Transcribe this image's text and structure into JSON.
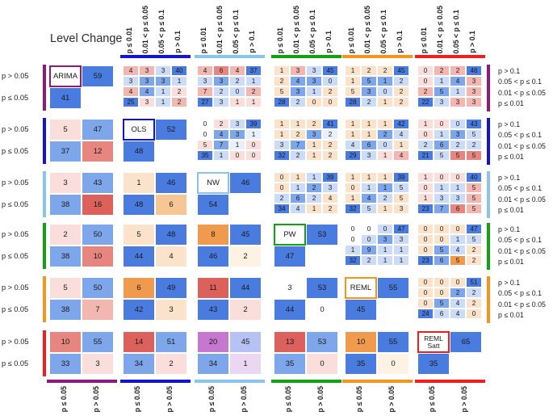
{
  "chart_data": {
    "type": "heatmap",
    "title": "Level Change",
    "top_axis_labels": [
      "p ≤ 0.01",
      "0.01 < p ≤ 0.05",
      "0.05 < p ≤ 0.1",
      "p > 0.1"
    ],
    "right_axis_labels": [
      "p > 0.1",
      "0.05 < p ≤ 0.1",
      "0.01 < p ≤ 0.05",
      "p ≤ 0.01"
    ],
    "left_axis_labels": [
      "p > 0.05",
      "p ≤ 0.05"
    ],
    "bottom_axis_labels": [
      "p ≤ 0.05",
      "p > 0.05"
    ],
    "palette": {
      "B": "#4a7ce0",
      "b": "#7ea6ea",
      "lb": "#ccdbf6",
      "vb": "#e9effb",
      "w": "#ffffff",
      "lp": "#f9dedb",
      "p": "#f3b7b1",
      "r": "#e78680",
      "R": "#dc605c",
      "pe": "#fae3ca",
      "o": "#f09a4e",
      "lo": "#f6c795",
      "cr": "#fdf2e3",
      "u": "#c678ce",
      "bu": "#b6c2f3",
      "lu": "#ebd7f1"
    },
    "methods": [
      {
        "name": "ARIMA",
        "color": "#8e1a7c",
        "p_gt_05": 59,
        "p_le_05": 41,
        "two_line": false
      },
      {
        "name": "OLS",
        "color": "#1414cd",
        "p_gt_05": 52,
        "p_le_05": 48,
        "two_line": false
      },
      {
        "name": "NW",
        "color": "#8ac4ea",
        "p_gt_05": 46,
        "p_le_05": 54,
        "two_line": false
      },
      {
        "name": "PW",
        "color": "#13a013",
        "p_gt_05": 53,
        "p_le_05": 47,
        "two_line": false
      },
      {
        "name": "REML",
        "color": "#f7941e",
        "p_gt_05": 55,
        "p_le_05": 45,
        "two_line": false
      },
      {
        "name": "REML Satt",
        "color": "#f21d1d",
        "p_gt_05": 65,
        "p_le_05": 35,
        "two_line": true
      }
    ],
    "upper_blocks": [
      {
        "row": 1,
        "col": 2,
        "values": [
          [
            4,
            3,
            3,
            40
          ],
          [
            3,
            3,
            3,
            1
          ],
          [
            4,
            4,
            1,
            2
          ],
          [
            25,
            3,
            1,
            2
          ]
        ],
        "colors": [
          [
            "p",
            "p",
            "lb",
            "B"
          ],
          [
            "lb",
            "b",
            "b",
            "lb"
          ],
          [
            "p",
            "b",
            "lb",
            "lp"
          ],
          [
            "B",
            "lp",
            "lb",
            "p"
          ]
        ]
      },
      {
        "row": 1,
        "col": 3,
        "values": [
          [
            4,
            6,
            4,
            37
          ],
          [
            3,
            3,
            2,
            1
          ],
          [
            7,
            2,
            0,
            2
          ],
          [
            27,
            3,
            1,
            1
          ]
        ],
        "colors": [
          [
            "p",
            "r",
            "p",
            "B"
          ],
          [
            "lb",
            "b",
            "lb",
            "lb"
          ],
          [
            "p",
            "lb",
            "lb",
            "p"
          ],
          [
            "B",
            "lb",
            "lp",
            "lp"
          ]
        ]
      },
      {
        "row": 1,
        "col": 4,
        "values": [
          [
            1,
            3,
            3,
            45
          ],
          [
            2,
            4,
            3,
            0
          ],
          [
            5,
            3,
            1,
            2
          ],
          [
            28,
            2,
            0,
            0
          ]
        ],
        "colors": [
          [
            "pe",
            "p",
            "lb",
            "B"
          ],
          [
            "pe",
            "b",
            "b",
            "lb"
          ],
          [
            "pe",
            "b",
            "lb",
            "pe"
          ],
          [
            "B",
            "lb",
            "pe",
            "pe"
          ]
        ]
      },
      {
        "row": 1,
        "col": 5,
        "values": [
          [
            1,
            2,
            2,
            45
          ],
          [
            1,
            5,
            1,
            2
          ],
          [
            5,
            3,
            0,
            2
          ],
          [
            28,
            2,
            1,
            2
          ]
        ],
        "colors": [
          [
            "pe",
            "pe",
            "pe",
            "B"
          ],
          [
            "pe",
            "b",
            "b",
            "lb"
          ],
          [
            "pe",
            "b",
            "lb",
            "pe"
          ],
          [
            "B",
            "lb",
            "pe",
            "pe"
          ]
        ]
      },
      {
        "row": 1,
        "col": 6,
        "values": [
          [
            0,
            2,
            2,
            46
          ],
          [
            0,
            1,
            4,
            3
          ],
          [
            2,
            5,
            1,
            3
          ],
          [
            22,
            3,
            3,
            3
          ]
        ],
        "colors": [
          [
            "lp",
            "p",
            "p",
            "B"
          ],
          [
            "lp",
            "lb",
            "b",
            "p"
          ],
          [
            "p",
            "b",
            "lb",
            "p"
          ],
          [
            "B",
            "lb",
            "p",
            "p"
          ]
        ]
      },
      {
        "row": 2,
        "col": 3,
        "values": [
          [
            0,
            2,
            3,
            39
          ],
          [
            0,
            4,
            3,
            1
          ],
          [
            5,
            7,
            1,
            0
          ],
          [
            35,
            1,
            0,
            0
          ]
        ],
        "colors": [
          [
            "w",
            "lp",
            "lb",
            "B"
          ],
          [
            "w",
            "b",
            "b",
            "vb"
          ],
          [
            "lp",
            "b",
            "vb",
            "lp"
          ],
          [
            "B",
            "lb",
            "lp",
            "lp"
          ]
        ]
      },
      {
        "row": 2,
        "col": 4,
        "values": [
          [
            1,
            1,
            2,
            41
          ],
          [
            1,
            2,
            3,
            2
          ],
          [
            3,
            7,
            1,
            2
          ],
          [
            32,
            2,
            1,
            2
          ]
        ],
        "colors": [
          [
            "pe",
            "pe",
            "pe",
            "B"
          ],
          [
            "pe",
            "pe",
            "b",
            "vb"
          ],
          [
            "lb",
            "b",
            "pe",
            "pe"
          ],
          [
            "B",
            "lb",
            "pe",
            "pe"
          ]
        ]
      },
      {
        "row": 2,
        "col": 5,
        "values": [
          [
            1,
            1,
            1,
            42
          ],
          [
            1,
            1,
            2,
            4
          ],
          [
            4,
            6,
            0,
            1
          ],
          [
            29,
            3,
            1,
            4
          ]
        ],
        "colors": [
          [
            "pe",
            "pe",
            "pe",
            "B"
          ],
          [
            "pe",
            "pe",
            "b",
            "lb"
          ],
          [
            "lb",
            "b",
            "lb",
            "pe"
          ],
          [
            "B",
            "lb",
            "lp",
            "p"
          ]
        ]
      },
      {
        "row": 2,
        "col": 6,
        "values": [
          [
            1,
            0,
            0,
            43
          ],
          [
            0,
            1,
            3,
            5
          ],
          [
            2,
            6,
            2,
            2
          ],
          [
            21,
            5,
            5,
            5
          ]
        ],
        "colors": [
          [
            "lp",
            "lp",
            "lb",
            "B"
          ],
          [
            "lp",
            "lb",
            "b",
            "lb"
          ],
          [
            "lb",
            "b",
            "lb",
            "lb"
          ],
          [
            "B",
            "lb",
            "r",
            "r"
          ]
        ]
      },
      {
        "row": 3,
        "col": 4,
        "values": [
          [
            0,
            1,
            1,
            39
          ],
          [
            0,
            1,
            2,
            3
          ],
          [
            2,
            6,
            2,
            4
          ],
          [
            34,
            4,
            1,
            2
          ]
        ],
        "colors": [
          [
            "pe",
            "pe",
            "lb",
            "B"
          ],
          [
            "pe",
            "lb",
            "b",
            "lb"
          ],
          [
            "lb",
            "b",
            "lb",
            "pe"
          ],
          [
            "B",
            "lb",
            "pe",
            "pe"
          ]
        ]
      },
      {
        "row": 3,
        "col": 5,
        "values": [
          [
            1,
            1,
            1,
            39
          ],
          [
            0,
            1,
            1,
            5
          ],
          [
            1,
            4,
            2,
            5
          ],
          [
            32,
            5,
            1,
            3
          ]
        ],
        "colors": [
          [
            "pe",
            "pe",
            "pe",
            "B"
          ],
          [
            "pe",
            "lb",
            "b",
            "lb"
          ],
          [
            "pe",
            "b",
            "lb",
            "pe"
          ],
          [
            "B",
            "lb",
            "pe",
            "pe"
          ]
        ]
      },
      {
        "row": 3,
        "col": 6,
        "values": [
          [
            1,
            0,
            0,
            40
          ],
          [
            0,
            1,
            1,
            5
          ],
          [
            1,
            3,
            3,
            5
          ],
          [
            23,
            7,
            6,
            5
          ]
        ],
        "colors": [
          [
            "lp",
            "lp",
            "lp",
            "B"
          ],
          [
            "lp",
            "lb",
            "lb",
            "p"
          ],
          [
            "lp",
            "lb",
            "lb",
            "p"
          ],
          [
            "B",
            "b",
            "r",
            "p"
          ]
        ]
      },
      {
        "row": 4,
        "col": 5,
        "values": [
          [
            0,
            0,
            0,
            47
          ],
          [
            0,
            0,
            3,
            3
          ],
          [
            1,
            9,
            1,
            1
          ],
          [
            32,
            2,
            1,
            1
          ]
        ],
        "colors": [
          [
            "w",
            "w",
            "lb",
            "B"
          ],
          [
            "w",
            "lb",
            "b",
            "lb"
          ],
          [
            "lb",
            "b",
            "lb",
            "lb"
          ],
          [
            "B",
            "lb",
            "lb",
            "lb"
          ]
        ]
      },
      {
        "row": 4,
        "col": 6,
        "values": [
          [
            0,
            0,
            0,
            47
          ],
          [
            0,
            0,
            1,
            5
          ],
          [
            0,
            5,
            4,
            2
          ],
          [
            23,
            6,
            5,
            2
          ]
        ],
        "colors": [
          [
            "pe",
            "pe",
            "pe",
            "B"
          ],
          [
            "pe",
            "pe",
            "lb",
            "lb"
          ],
          [
            "pe",
            "b",
            "lb",
            "pe"
          ],
          [
            "B",
            "b",
            "o",
            "pe"
          ]
        ]
      },
      {
        "row": 5,
        "col": 6,
        "values": [
          [
            0,
            0,
            0,
            51
          ],
          [
            0,
            0,
            2,
            2
          ],
          [
            0,
            5,
            4,
            2
          ],
          [
            24,
            6,
            4,
            0
          ]
        ],
        "colors": [
          [
            "pe",
            "pe",
            "pe",
            "B"
          ],
          [
            "pe",
            "pe",
            "b",
            "lb"
          ],
          [
            "pe",
            "b",
            "lb",
            "pe"
          ],
          [
            "B",
            "lb",
            "lb",
            "pe"
          ]
        ]
      }
    ],
    "lower_blocks": [
      {
        "row": 2,
        "col": 1,
        "values": [
          [
            5,
            47
          ],
          [
            37,
            12
          ]
        ],
        "colors": [
          [
            "lp",
            "b"
          ],
          [
            "b",
            "r"
          ]
        ]
      },
      {
        "row": 3,
        "col": 1,
        "values": [
          [
            3,
            43
          ],
          [
            38,
            16
          ]
        ],
        "colors": [
          [
            "lp",
            "b"
          ],
          [
            "b",
            "R"
          ]
        ]
      },
      {
        "row": 3,
        "col": 2,
        "values": [
          [
            1,
            46
          ],
          [
            48,
            6
          ]
        ],
        "colors": [
          [
            "pe",
            "B"
          ],
          [
            "B",
            "lo"
          ]
        ]
      },
      {
        "row": 4,
        "col": 1,
        "values": [
          [
            2,
            50
          ],
          [
            38,
            10
          ]
        ],
        "colors": [
          [
            "lp",
            "b"
          ],
          [
            "b",
            "r"
          ]
        ]
      },
      {
        "row": 4,
        "col": 2,
        "values": [
          [
            5,
            48
          ],
          [
            44,
            4
          ]
        ],
        "colors": [
          [
            "pe",
            "B"
          ],
          [
            "B",
            "pe"
          ]
        ]
      },
      {
        "row": 4,
        "col": 3,
        "values": [
          [
            8,
            45
          ],
          [
            46,
            2
          ]
        ],
        "colors": [
          [
            "o",
            "B"
          ],
          [
            "B",
            "cr"
          ]
        ]
      },
      {
        "row": 5,
        "col": 1,
        "values": [
          [
            5,
            50
          ],
          [
            38,
            7
          ]
        ],
        "colors": [
          [
            "lp",
            "b"
          ],
          [
            "b",
            "p"
          ]
        ]
      },
      {
        "row": 5,
        "col": 2,
        "values": [
          [
            6,
            49
          ],
          [
            42,
            3
          ]
        ],
        "colors": [
          [
            "o",
            "B"
          ],
          [
            "B",
            "pe"
          ]
        ]
      },
      {
        "row": 5,
        "col": 3,
        "values": [
          [
            11,
            44
          ],
          [
            43,
            2
          ]
        ],
        "colors": [
          [
            "R",
            "B"
          ],
          [
            "B",
            "lp"
          ]
        ]
      },
      {
        "row": 5,
        "col": 4,
        "values": [
          [
            3,
            53
          ],
          [
            44,
            0
          ]
        ],
        "colors": [
          [
            "w",
            "B"
          ],
          [
            "B",
            "w"
          ]
        ]
      },
      {
        "row": 6,
        "col": 1,
        "values": [
          [
            10,
            55
          ],
          [
            33,
            3
          ]
        ],
        "colors": [
          [
            "r",
            "b"
          ],
          [
            "b",
            "lp"
          ]
        ]
      },
      {
        "row": 6,
        "col": 2,
        "values": [
          [
            14,
            51
          ],
          [
            34,
            2
          ]
        ],
        "colors": [
          [
            "R",
            "b"
          ],
          [
            "b",
            "lp"
          ]
        ]
      },
      {
        "row": 6,
        "col": 3,
        "values": [
          [
            20,
            45
          ],
          [
            34,
            1
          ]
        ],
        "colors": [
          [
            "u",
            "bu"
          ],
          [
            "b",
            "lu"
          ]
        ]
      },
      {
        "row": 6,
        "col": 4,
        "values": [
          [
            13,
            53
          ],
          [
            35,
            0
          ]
        ],
        "colors": [
          [
            "R",
            "b"
          ],
          [
            "b",
            "lp"
          ]
        ]
      },
      {
        "row": 6,
        "col": 5,
        "values": [
          [
            10,
            55
          ],
          [
            35,
            0
          ]
        ],
        "colors": [
          [
            "o",
            "B"
          ],
          [
            "B",
            "cr"
          ]
        ]
      }
    ]
  }
}
